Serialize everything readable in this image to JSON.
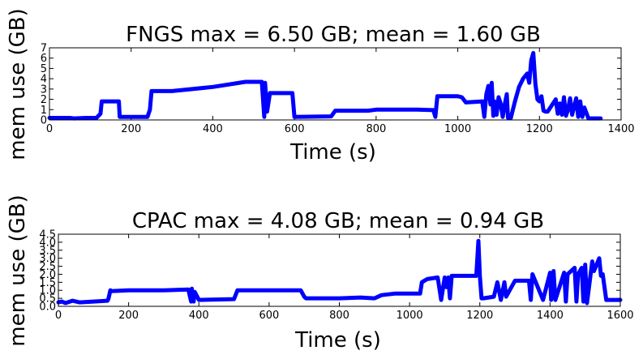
{
  "chart_data": [
    {
      "type": "line",
      "title": "FNGS max = 6.50 GB; mean = 1.60 GB",
      "xlabel": "Time (s)",
      "ylabel": "mem use (GB)",
      "xlim": [
        0,
        1400
      ],
      "ylim": [
        0,
        7
      ],
      "xticks": [
        0,
        200,
        400,
        600,
        800,
        1000,
        1200,
        1400
      ],
      "yticks": [
        0,
        1,
        2,
        3,
        4,
        5,
        6,
        7
      ],
      "grid": false,
      "color": "#0000ff",
      "x": [
        0,
        50,
        60,
        90,
        115,
        125,
        128,
        135,
        170,
        172,
        240,
        246,
        250,
        300,
        400,
        480,
        520,
        526,
        528,
        533,
        540,
        550,
        595,
        600,
        690,
        700,
        780,
        800,
        900,
        940,
        945,
        950,
        1000,
        1010,
        1020,
        1060,
        1065,
        1070,
        1075,
        1080,
        1083,
        1087,
        1090,
        1095,
        1100,
        1105,
        1110,
        1115,
        1120,
        1123,
        1130,
        1140,
        1150,
        1160,
        1170,
        1175,
        1180,
        1185,
        1190,
        1195,
        1200,
        1205,
        1210,
        1215,
        1220,
        1240,
        1245,
        1250,
        1255,
        1260,
        1265,
        1270,
        1275,
        1280,
        1290,
        1295,
        1300,
        1305,
        1310,
        1320,
        1350
      ],
      "y": [
        0.2,
        0.2,
        0.15,
        0.2,
        0.2,
        0.6,
        1.8,
        1.8,
        1.8,
        0.3,
        0.3,
        1.0,
        2.8,
        2.8,
        3.2,
        3.7,
        3.7,
        0.3,
        3.6,
        0.8,
        2.6,
        2.6,
        2.6,
        0.3,
        0.35,
        0.9,
        0.9,
        1.0,
        1.0,
        0.95,
        0.3,
        2.3,
        2.3,
        2.2,
        1.7,
        1.8,
        0.3,
        2.5,
        3.3,
        1.5,
        3.6,
        0.4,
        1.8,
        0.5,
        2.2,
        1.6,
        0.3,
        1.5,
        2.5,
        0.2,
        0.2,
        1.8,
        3.2,
        4.0,
        4.5,
        3.6,
        5.8,
        6.5,
        3.5,
        2.0,
        1.8,
        2.3,
        0.9,
        0.8,
        0.8,
        2.0,
        0.6,
        1.6,
        0.5,
        2.2,
        0.4,
        1.0,
        2.1,
        0.5,
        2.1,
        0.3,
        1.8,
        0.3,
        1.2,
        0.15,
        0.15
      ]
    },
    {
      "type": "line",
      "title": "CPAC max = 4.08 GB; mean = 0.94 GB",
      "xlabel": "Time (s)",
      "ylabel": "mem use (GB)",
      "xlim": [
        0,
        1600
      ],
      "ylim": [
        0,
        4.5
      ],
      "xticks": [
        0,
        200,
        400,
        600,
        800,
        1000,
        1200,
        1400,
        1600
      ],
      "yticks": [
        0.0,
        0.5,
        1.0,
        1.5,
        2.0,
        2.5,
        3.0,
        3.5,
        4.0,
        4.5
      ],
      "ytick_labels": [
        "0.0",
        "0.5",
        "1.0",
        "1.5",
        "2.0",
        "2.5",
        "3.0",
        "3.5",
        "4.0",
        "4.5"
      ],
      "grid": false,
      "color": "#0000ff",
      "x": [
        0,
        10,
        20,
        40,
        60,
        100,
        140,
        143,
        148,
        150,
        200,
        300,
        370,
        378,
        380,
        385,
        388,
        400,
        500,
        510,
        600,
        690,
        700,
        705,
        800,
        860,
        900,
        920,
        960,
        1000,
        1030,
        1035,
        1050,
        1080,
        1090,
        1100,
        1105,
        1110,
        1115,
        1120,
        1150,
        1190,
        1196,
        1200,
        1205,
        1210,
        1240,
        1250,
        1260,
        1270,
        1275,
        1300,
        1340,
        1345,
        1350,
        1380,
        1400,
        1403,
        1410,
        1415,
        1440,
        1445,
        1450,
        1470,
        1475,
        1480,
        1490,
        1495,
        1500,
        1505,
        1520,
        1525,
        1540,
        1545,
        1550,
        1560,
        1600
      ],
      "y": [
        0.25,
        0.3,
        0.2,
        0.35,
        0.25,
        0.3,
        0.35,
        0.5,
        1.0,
        0.95,
        1.0,
        1.0,
        1.05,
        0.3,
        1.1,
        0.3,
        0.9,
        0.4,
        0.45,
        1.0,
        1.0,
        1.0,
        0.6,
        0.5,
        0.5,
        0.55,
        0.5,
        0.7,
        0.8,
        0.8,
        0.8,
        1.5,
        1.7,
        1.8,
        0.4,
        1.8,
        1.2,
        1.8,
        0.5,
        1.9,
        1.9,
        1.9,
        4.08,
        1.9,
        0.5,
        0.5,
        0.6,
        1.5,
        0.4,
        1.5,
        0.6,
        1.6,
        1.6,
        0.4,
        2.0,
        0.4,
        2.1,
        0.4,
        2.2,
        0.4,
        2.1,
        0.3,
        2.0,
        2.4,
        0.3,
        2.0,
        2.4,
        0.3,
        2.6,
        0.2,
        2.8,
        2.2,
        3.0,
        1.9,
        2.0,
        0.4,
        0.4
      ]
    }
  ]
}
